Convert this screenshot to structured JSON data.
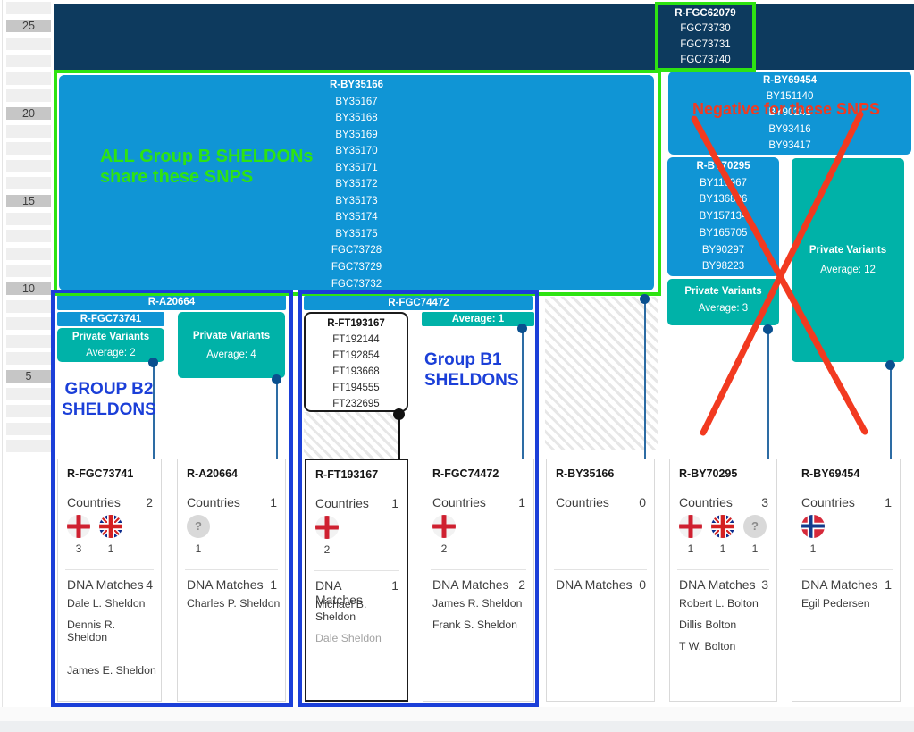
{
  "axis": {
    "ticks": [
      "25",
      "20",
      "15",
      "10",
      "5"
    ]
  },
  "fgc62079": {
    "name": "R-FGC62079",
    "snps": [
      "FGC73730",
      "FGC73731",
      "FGC73740"
    ]
  },
  "by35166": {
    "name": "R-BY35166",
    "snps": [
      "BY35167",
      "BY35168",
      "BY35169",
      "BY35170",
      "BY35171",
      "BY35172",
      "BY35173",
      "BY35174",
      "BY35175",
      "FGC73728",
      "FGC73729",
      "FGC73732"
    ]
  },
  "by69454": {
    "name": "R-BY69454",
    "snps": [
      "BY151140",
      "BY90241",
      "BY93416",
      "BY93417"
    ]
  },
  "by70295": {
    "name": "R-BY70295",
    "snps": [
      "BY110967",
      "BY136806",
      "BY157134",
      "BY165705",
      "BY90297",
      "BY98223"
    ]
  },
  "ft193167": {
    "name": "R-FT193167",
    "snps": [
      "FT192144",
      "FT192854",
      "FT193668",
      "FT194555",
      "FT232695"
    ]
  },
  "bars": {
    "a20664": "R-A20664",
    "fgc73741": "R-FGC73741",
    "fgc74472": "R-FGC74472",
    "avg1": "Average: 1"
  },
  "pv": {
    "pv2": {
      "title": "Private Variants",
      "avg": "Average: 2"
    },
    "pv3": {
      "title": "Private Variants",
      "avg": "Average: 3"
    },
    "pv4": {
      "title": "Private Variants",
      "avg": "Average: 4"
    },
    "pv12": {
      "title": "Private Variants",
      "avg": "Average: 12"
    }
  },
  "annotations": {
    "green_line1": "ALL Group B SHELDONs",
    "green_line2": "share these SNPS",
    "negative": "Negative for these SNPS",
    "b2_line1": "GROUP B2",
    "b2_line2": "SHELDONS",
    "b1_line1": "Group B1",
    "b1_line2": "SHELDONS"
  },
  "colors": {
    "navy": "#0d3a5e",
    "block_blue": "#1095d5",
    "teal": "#00b2a8",
    "highlight_green": "#2ee312",
    "annotation_blue": "#1b3fd8",
    "annotation_red": "#f23a20",
    "connector": "#2d6ca4",
    "dot": "#0a508f"
  },
  "cards": [
    {
      "title": "R-FGC73741",
      "countries_label": "Countries",
      "countries_count": "2",
      "flags": [
        {
          "icon": "england-flag-icon",
          "count": "3"
        },
        {
          "icon": "uk-flag-icon",
          "count": "1"
        }
      ],
      "dna_label": "DNA Matches",
      "dna_count": "4",
      "names": [
        {
          "text": "Dale L. Sheldon"
        },
        {
          "text": "Dennis R. Sheldon"
        },
        {
          "text": "James E. Sheldon",
          "gap_before": true
        }
      ]
    },
    {
      "title": "R-A20664",
      "countries_label": "Countries",
      "countries_count": "1",
      "flags": [
        {
          "icon": "question-icon",
          "count": "1"
        }
      ],
      "dna_label": "DNA Matches",
      "dna_count": "1",
      "names": [
        {
          "text": "Charles P. Sheldon"
        }
      ]
    },
    {
      "title": "R-FT193167",
      "countries_label": "Countries",
      "countries_count": "1",
      "flags": [
        {
          "icon": "england-flag-icon",
          "count": "2"
        }
      ],
      "dna_label": "DNA Matches",
      "dna_count": "1",
      "names": [
        {
          "text": "Michael B. Sheldon"
        },
        {
          "text": "Dale Sheldon",
          "muted": true
        }
      ]
    },
    {
      "title": "R-FGC74472",
      "countries_label": "Countries",
      "countries_count": "1",
      "flags": [
        {
          "icon": "england-flag-icon",
          "count": "2"
        }
      ],
      "dna_label": "DNA Matches",
      "dna_count": "2",
      "names": [
        {
          "text": "James R. Sheldon"
        },
        {
          "text": "Frank S. Sheldon"
        }
      ]
    },
    {
      "title": "R-BY35166",
      "countries_label": "Countries",
      "countries_count": "0",
      "flags": [],
      "dna_label": "DNA Matches",
      "dna_count": "0",
      "names": []
    },
    {
      "title": "R-BY70295",
      "countries_label": "Countries",
      "countries_count": "3",
      "flags": [
        {
          "icon": "england-flag-icon",
          "count": "1"
        },
        {
          "icon": "uk-flag-icon",
          "count": "1"
        },
        {
          "icon": "question-icon",
          "count": "1"
        }
      ],
      "dna_label": "DNA Matches",
      "dna_count": "3",
      "names": [
        {
          "text": "Robert L. Bolton"
        },
        {
          "text": "Dillis Bolton"
        },
        {
          "text": "T W. Bolton"
        }
      ]
    },
    {
      "title": "R-BY69454",
      "countries_label": "Countries",
      "countries_count": "1",
      "flags": [
        {
          "icon": "norway-flag-icon",
          "count": "1"
        }
      ],
      "dna_label": "DNA Matches",
      "dna_count": "1",
      "names": [
        {
          "text": "Egil Pedersen"
        }
      ]
    }
  ]
}
